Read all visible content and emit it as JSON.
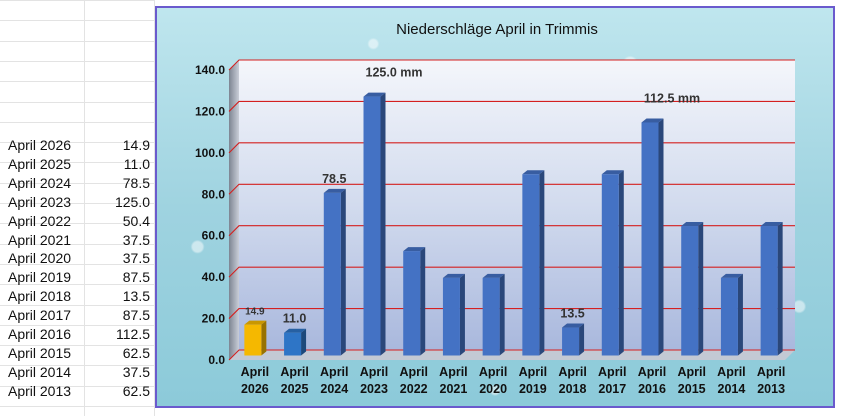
{
  "spreadsheet": {
    "rows": [
      {
        "label": "April 2026",
        "value": "14.9"
      },
      {
        "label": "April 2025",
        "value": "11.0"
      },
      {
        "label": "April 2024",
        "value": "78.5"
      },
      {
        "label": "April 2023",
        "value": "125.0"
      },
      {
        "label": "April 2022",
        "value": "50.4"
      },
      {
        "label": "April 2021",
        "value": "37.5"
      },
      {
        "label": "April 2020",
        "value": "37.5"
      },
      {
        "label": "April 2019",
        "value": "87.5"
      },
      {
        "label": "April 2018",
        "value": "13.5"
      },
      {
        "label": "April 2017",
        "value": "87.5"
      },
      {
        "label": "April 2016",
        "value": "112.5"
      },
      {
        "label": "April 2015",
        "value": "62.5"
      },
      {
        "label": "April 2014",
        "value": "37.5"
      },
      {
        "label": "April 2013",
        "value": "62.5"
      }
    ]
  },
  "chart_data": {
    "type": "bar",
    "title": "Niederschläge April in Trimmis",
    "categories": [
      [
        "April",
        "2026"
      ],
      [
        "April",
        "2025"
      ],
      [
        "April",
        "2024"
      ],
      [
        "April",
        "2023"
      ],
      [
        "April",
        "2022"
      ],
      [
        "April",
        "2021"
      ],
      [
        "April",
        "2020"
      ],
      [
        "April",
        "2019"
      ],
      [
        "April",
        "2018"
      ],
      [
        "April",
        "2017"
      ],
      [
        "April",
        "2016"
      ],
      [
        "April",
        "2015"
      ],
      [
        "April",
        "2014"
      ],
      [
        "April",
        "2013"
      ]
    ],
    "values": [
      14.9,
      11.0,
      78.5,
      125.0,
      50.4,
      37.5,
      37.5,
      87.5,
      13.5,
      87.5,
      112.5,
      62.5,
      37.5,
      62.5
    ],
    "ylim": [
      0,
      140
    ],
    "yticks": [
      "0.0",
      "20.0",
      "40.0",
      "60.0",
      "80.0",
      "100.0",
      "120.0",
      "140.0"
    ],
    "bar_colors": [
      "#f5b800",
      "#2e75c6",
      "#4472c4",
      "#4472c4",
      "#4472c4",
      "#4472c4",
      "#4472c4",
      "#4472c4",
      "#4472c4",
      "#4472c4",
      "#4472c4",
      "#4472c4",
      "#4472c4",
      "#4472c4"
    ],
    "data_labels": [
      {
        "index": 0,
        "text": "14.9"
      },
      {
        "index": 1,
        "text": "11.0"
      },
      {
        "index": 2,
        "text": "78.5"
      },
      {
        "index": 3,
        "text": "125.0 mm"
      },
      {
        "index": 8,
        "text": "13.5"
      },
      {
        "index": 10,
        "text": "112.5 mm"
      }
    ],
    "gridline_color": "#d42020",
    "xlabel": "",
    "ylabel": "",
    "grid": true
  }
}
